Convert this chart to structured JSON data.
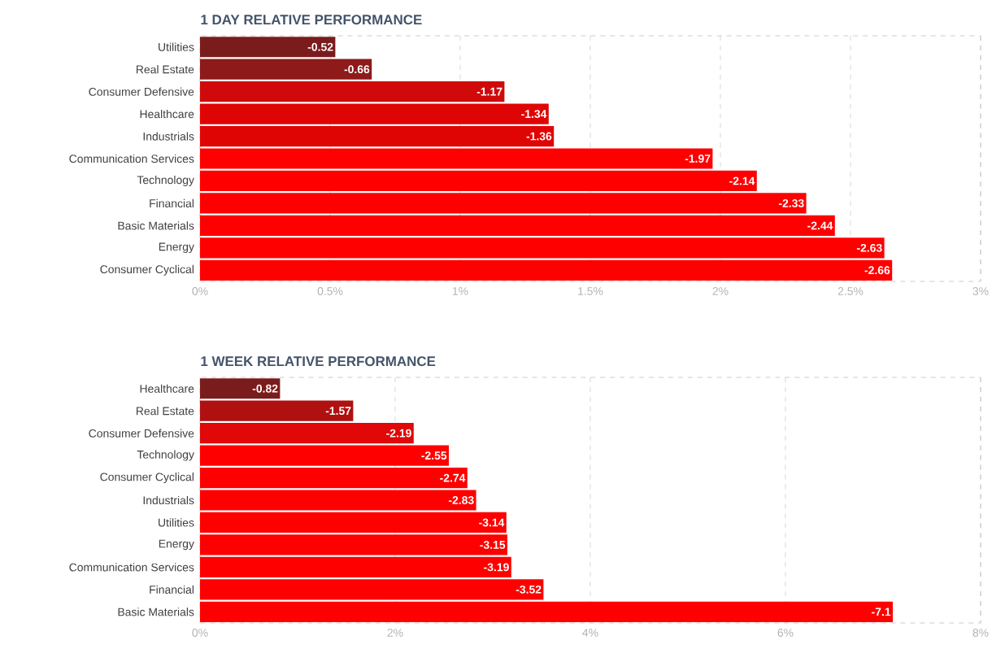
{
  "chart_data": [
    {
      "type": "bar",
      "orientation": "horizontal",
      "title": "1 DAY RELATIVE PERFORMANCE",
      "categories": [
        "Utilities",
        "Real Estate",
        "Consumer Defensive",
        "Healthcare",
        "Industrials",
        "Communication Services",
        "Technology",
        "Financial",
        "Basic Materials",
        "Energy",
        "Consumer Cyclical"
      ],
      "values": [
        -0.52,
        -0.66,
        -1.17,
        -1.34,
        -1.36,
        -1.97,
        -2.14,
        -2.33,
        -2.44,
        -2.63,
        -2.66
      ],
      "data_labels": true,
      "colors": [
        "#7b1c1c",
        "#8e1a1a",
        "#d00a0a",
        "#e00505",
        "#e00505",
        "#ff0000",
        "#ff0000",
        "#ff0000",
        "#ff0000",
        "#ff0000",
        "#ff0000"
      ],
      "xlim": [
        0,
        -3
      ],
      "xticks": [
        {
          "value": 0,
          "label": "0%"
        },
        {
          "value": -0.5,
          "label": "0.5%"
        },
        {
          "value": -1,
          "label": "1%"
        },
        {
          "value": -1.5,
          "label": "1.5%"
        },
        {
          "value": -2,
          "label": "2%"
        },
        {
          "value": -2.5,
          "label": "2.5%"
        },
        {
          "value": -3,
          "label": "3%"
        }
      ],
      "grid": "x"
    },
    {
      "type": "bar",
      "orientation": "horizontal",
      "title": "1 WEEK RELATIVE PERFORMANCE",
      "categories": [
        "Healthcare",
        "Real Estate",
        "Consumer Defensive",
        "Technology",
        "Consumer Cyclical",
        "Industrials",
        "Utilities",
        "Energy",
        "Communication Services",
        "Financial",
        "Basic Materials"
      ],
      "values": [
        -0.82,
        -1.57,
        -2.19,
        -2.55,
        -2.74,
        -2.83,
        -3.14,
        -3.15,
        -3.19,
        -3.52,
        -7.1
      ],
      "data_labels": true,
      "colors": [
        "#7b1c1c",
        "#b01010",
        "#e00808",
        "#ff0000",
        "#ff0000",
        "#ff0000",
        "#ff0000",
        "#ff0000",
        "#ff0000",
        "#ff0000",
        "#ff0000"
      ],
      "xlim": [
        0,
        -8
      ],
      "xticks": [
        {
          "value": 0,
          "label": "0%"
        },
        {
          "value": -2,
          "label": "2%"
        },
        {
          "value": -4,
          "label": "4%"
        },
        {
          "value": -6,
          "label": "6%"
        },
        {
          "value": -8,
          "label": "8%"
        }
      ],
      "grid": "x"
    }
  ]
}
